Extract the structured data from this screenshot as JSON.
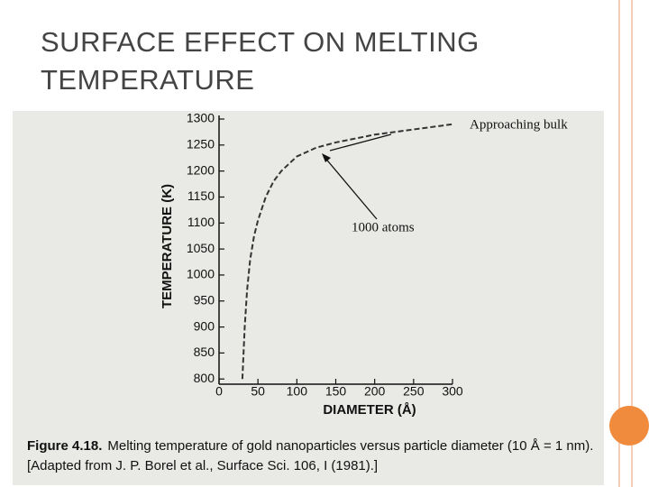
{
  "slide_title": "SURFACE EFFECT ON MELTING TEMPERATURE",
  "chart_data": {
    "type": "line",
    "x_label": "DIAMETER (Å)",
    "y_label": "TEMPERATURE (K)",
    "x": [
      30,
      33,
      36,
      40,
      45,
      50,
      60,
      70,
      80,
      100,
      125,
      150,
      200,
      250,
      300
    ],
    "series": [
      {
        "name": "Gold nanoparticles",
        "color": "#333333",
        "values": [
          800,
          900,
          970,
          1030,
          1075,
          1105,
          1150,
          1180,
          1200,
          1228,
          1245,
          1255,
          1270,
          1280,
          1290
        ]
      }
    ],
    "xlim": [
      0,
      300
    ],
    "ylim": [
      790,
      1300
    ],
    "xticks": [
      0,
      50,
      100,
      150,
      200,
      250,
      300
    ],
    "yticks": [
      800,
      850,
      900,
      950,
      1000,
      1050,
      1100,
      1150,
      1200,
      1250,
      1300
    ],
    "annotations": [
      "Approaching bulk",
      "1000 atoms"
    ],
    "caption": {
      "label": "Figure 4.18.",
      "text": "Melting temperature of gold nanoparticles versus particle diameter (10 Å = 1 nm).",
      "source": "[Adapted from J. P. Borel et al., Surface Sci. 106, I (1981).]"
    }
  }
}
